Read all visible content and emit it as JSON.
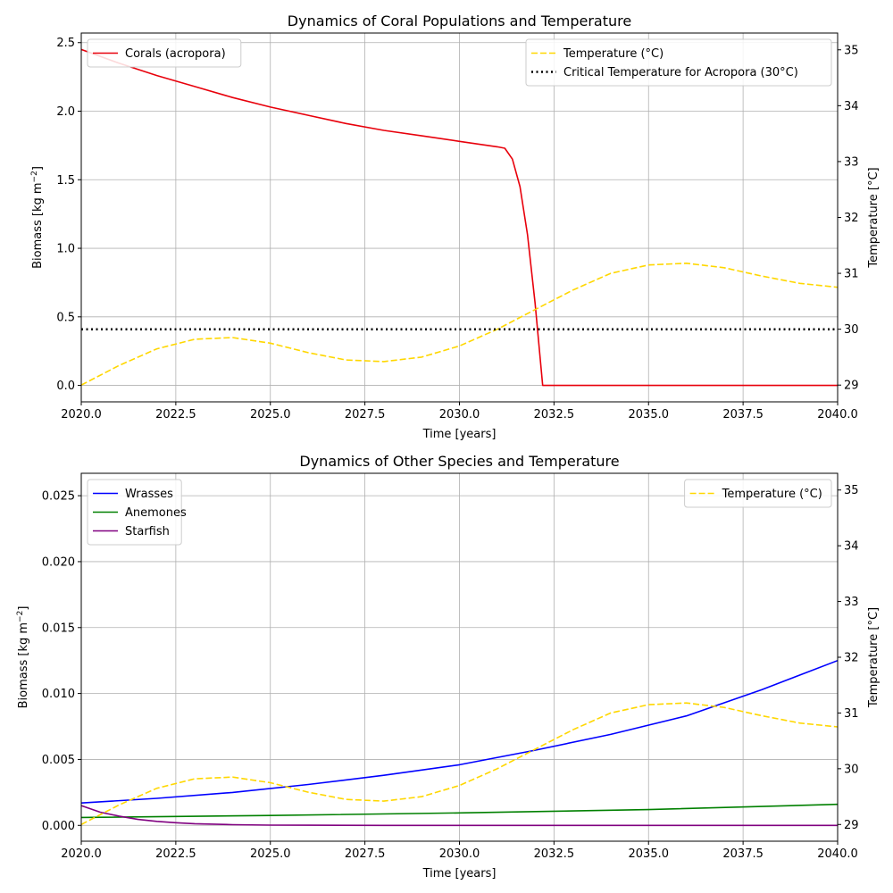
{
  "chart_data": [
    {
      "type": "line",
      "title": "Dynamics of Coral Populations and Temperature",
      "xlabel": "Time [years]",
      "ylabel": "Biomass [kg m⁻²]",
      "ylabel_base": "Biomass [kg m",
      "ylabel_exp": "−2",
      "ylabel_close": "]",
      "y2label": "Temperature [°C]",
      "xlim": [
        2020,
        2040
      ],
      "ylim": [
        -0.12,
        2.57
      ],
      "y2lim": [
        28.7,
        35.3
      ],
      "x_ticks": [
        2020,
        2022.5,
        2025,
        2027.5,
        2030,
        2032.5,
        2035,
        2037.5,
        2040
      ],
      "x_tick_labels": [
        "2020.0",
        "2022.5",
        "2025.0",
        "2027.5",
        "2030.0",
        "2032.5",
        "2035.0",
        "2037.5",
        "2040.0"
      ],
      "y_ticks": [
        0,
        0.5,
        1.0,
        1.5,
        2.0,
        2.5
      ],
      "y_tick_labels": [
        "0.0",
        "0.5",
        "1.0",
        "1.5",
        "2.0",
        "2.5"
      ],
      "y2_ticks": [
        29,
        30,
        31,
        32,
        33,
        34,
        35
      ],
      "y2_tick_labels": [
        "29",
        "30",
        "31",
        "32",
        "33",
        "34",
        "35"
      ],
      "grid": true,
      "series": [
        {
          "name": "Corals (acropora)",
          "axis": "left",
          "color": "#e8000b",
          "style": "solid",
          "x": [
            2020,
            2021,
            2022,
            2023,
            2024,
            2025,
            2026,
            2027,
            2028,
            2029,
            2030,
            2031,
            2031.2,
            2031.4,
            2031.6,
            2031.8,
            2032.0,
            2032.2,
            2033,
            2034,
            2035,
            2036,
            2037,
            2038,
            2039,
            2040
          ],
          "y": [
            2.45,
            2.35,
            2.26,
            2.18,
            2.1,
            2.03,
            1.97,
            1.91,
            1.86,
            1.82,
            1.78,
            1.74,
            1.73,
            1.65,
            1.45,
            1.1,
            0.6,
            0.0,
            0,
            0,
            0,
            0,
            0,
            0,
            0,
            0
          ]
        },
        {
          "name": "Temperature (°C)",
          "axis": "right",
          "color": "#ffd700",
          "style": "dashed",
          "x": [
            2020,
            2021,
            2022,
            2023,
            2024,
            2025,
            2026,
            2027,
            2028,
            2029,
            2030,
            2031,
            2032,
            2033,
            2034,
            2035,
            2036,
            2037,
            2038,
            2039,
            2040
          ],
          "y": [
            29.0,
            29.35,
            29.65,
            29.82,
            29.85,
            29.75,
            29.58,
            29.45,
            29.42,
            29.5,
            29.7,
            30.0,
            30.35,
            30.7,
            31.0,
            31.15,
            31.18,
            31.1,
            30.95,
            30.82,
            30.75
          ]
        },
        {
          "name": "Critical Temperature for Acropora (30°C)",
          "axis": "right",
          "color": "#000000",
          "style": "dotted",
          "x": [
            2020,
            2040
          ],
          "y": [
            30,
            30
          ]
        }
      ],
      "legend_left": [
        "Corals (acropora)"
      ],
      "legend_right": [
        "Temperature (°C)",
        "Critical Temperature for Acropora (30°C)"
      ]
    },
    {
      "type": "line",
      "title": "Dynamics of Other Species and Temperature",
      "xlabel": "Time [years]",
      "ylabel": "Biomass [kg m⁻²]",
      "ylabel_base": "Biomass [kg m",
      "ylabel_exp": "−2",
      "ylabel_close": "]",
      "y2label": "Temperature [°C]",
      "xlim": [
        2020,
        2040
      ],
      "ylim": [
        -0.0012,
        0.0267
      ],
      "y2lim": [
        28.7,
        35.3
      ],
      "x_ticks": [
        2020,
        2022.5,
        2025,
        2027.5,
        2030,
        2032.5,
        2035,
        2037.5,
        2040
      ],
      "x_tick_labels": [
        "2020.0",
        "2022.5",
        "2025.0",
        "2027.5",
        "2030.0",
        "2032.5",
        "2035.0",
        "2037.5",
        "2040.0"
      ],
      "y_ticks": [
        0,
        0.005,
        0.01,
        0.015,
        0.02,
        0.025
      ],
      "y_tick_labels": [
        "0.000",
        "0.005",
        "0.010",
        "0.015",
        "0.020",
        "0.025"
      ],
      "y2_ticks": [
        29,
        30,
        31,
        32,
        33,
        34,
        35
      ],
      "y2_tick_labels": [
        "29",
        "30",
        "31",
        "32",
        "33",
        "34",
        "35"
      ],
      "grid": true,
      "series": [
        {
          "name": "Wrasses",
          "axis": "left",
          "color": "#0000ff",
          "style": "solid",
          "x": [
            2020,
            2022,
            2024,
            2026,
            2028,
            2030,
            2032,
            2034,
            2036,
            2038,
            2040
          ],
          "y": [
            0.0017,
            0.00205,
            0.0025,
            0.0031,
            0.0038,
            0.0046,
            0.0057,
            0.0069,
            0.0083,
            0.0103,
            0.0125
          ]
        },
        {
          "name": "Anemones",
          "axis": "left",
          "color": "#008000",
          "style": "solid",
          "x": [
            2020,
            2025,
            2030,
            2035,
            2040
          ],
          "y": [
            0.0006,
            0.00075,
            0.00095,
            0.0012,
            0.0016
          ]
        },
        {
          "name": "Starfish",
          "axis": "left",
          "color": "#800080",
          "style": "solid",
          "x": [
            2020,
            2020.5,
            2021,
            2021.5,
            2022,
            2022.5,
            2023,
            2024,
            2025,
            2026,
            2028,
            2030,
            2035,
            2040
          ],
          "y": [
            0.0015,
            0.001,
            0.0007,
            0.00045,
            0.0003,
            0.0002,
            0.00013,
            5e-05,
            2e-05,
            1e-05,
            0,
            0,
            0,
            0
          ]
        },
        {
          "name": "Temperature (°C)",
          "axis": "right",
          "color": "#ffd700",
          "style": "dashed",
          "x": [
            2020,
            2021,
            2022,
            2023,
            2024,
            2025,
            2026,
            2027,
            2028,
            2029,
            2030,
            2031,
            2032,
            2033,
            2034,
            2035,
            2036,
            2037,
            2038,
            2039,
            2040
          ],
          "y": [
            29.0,
            29.35,
            29.65,
            29.82,
            29.85,
            29.75,
            29.58,
            29.45,
            29.42,
            29.5,
            29.7,
            30.0,
            30.35,
            30.7,
            31.0,
            31.15,
            31.18,
            31.1,
            30.95,
            30.82,
            30.75
          ]
        }
      ],
      "legend_left": [
        "Wrasses",
        "Anemones",
        "Starfish"
      ],
      "legend_right": [
        "Temperature (°C)"
      ]
    }
  ]
}
